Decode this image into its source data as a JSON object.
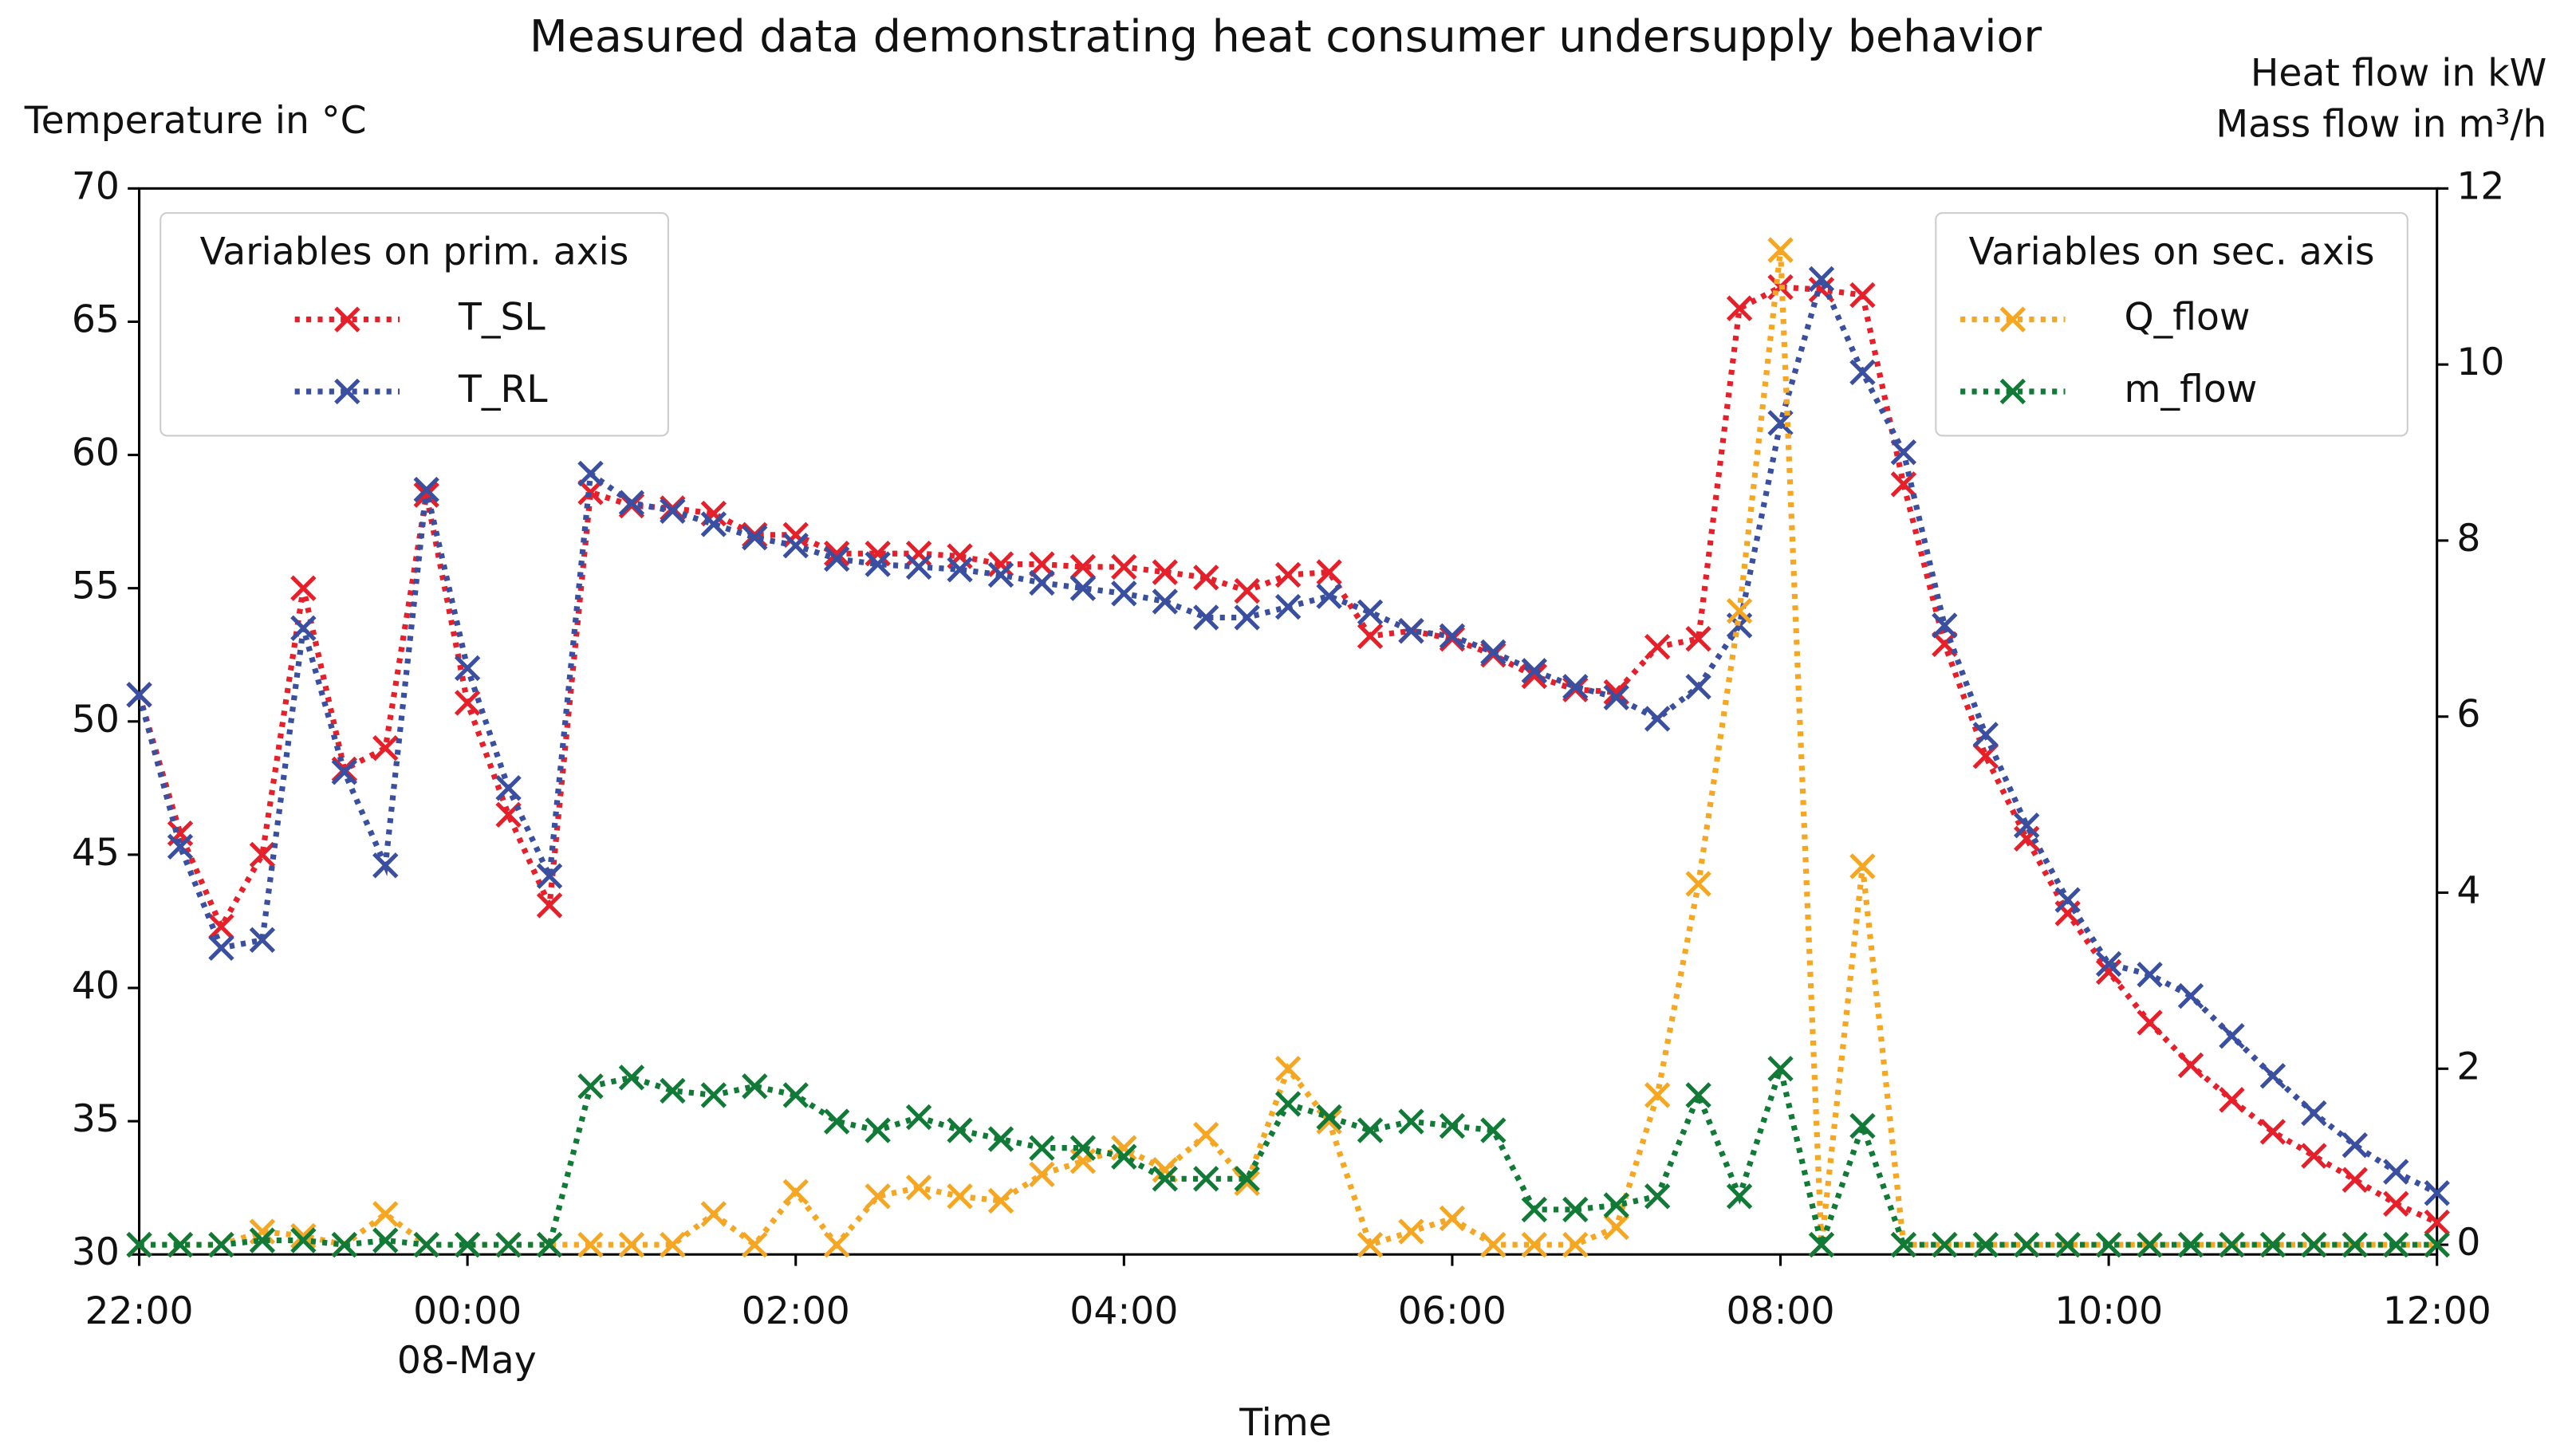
{
  "chart_data": {
    "type": "line",
    "title": "Measured data demonstrating heat consumer undersupply behavior",
    "y_label": "Temperature in °C",
    "y2_label": [
      "Heat flow in kW",
      "Mass flow in m³/h"
    ],
    "x_label": "Time",
    "x_date_label": "08-May",
    "legend_titles": [
      "Variables on prim. axis",
      "Variables on sec. axis"
    ],
    "x": [
      -2,
      -1.75,
      -1.5,
      -1.25,
      -1,
      -0.75,
      -0.5,
      -0.25,
      0,
      0.25,
      0.5,
      0.75,
      1,
      1.25,
      1.5,
      1.75,
      2,
      2.25,
      2.5,
      2.75,
      3,
      3.25,
      3.5,
      3.75,
      4,
      4.25,
      4.5,
      4.75,
      5,
      5.25,
      5.5,
      5.75,
      6,
      6.25,
      6.5,
      6.75,
      7,
      7.25,
      7.5,
      7.75,
      8,
      8.25,
      8.5,
      8.75,
      9,
      9.25,
      9.5,
      9.75,
      10,
      10.25,
      10.5,
      10.75,
      11,
      11.25,
      11.5,
      11.75,
      12
    ],
    "xlim": [
      -2,
      12
    ],
    "xticks": [
      {
        "value": -2,
        "label": "22:00"
      },
      {
        "value": 0,
        "label": "00:00"
      },
      {
        "value": 2,
        "label": "02:00"
      },
      {
        "value": 4,
        "label": "04:00"
      },
      {
        "value": 6,
        "label": "06:00"
      },
      {
        "value": 8,
        "label": "08:00"
      },
      {
        "value": 10,
        "label": "10:00"
      },
      {
        "value": 12,
        "label": "12:00"
      }
    ],
    "ylim": [
      30,
      70
    ],
    "yticks": [
      30,
      35,
      40,
      45,
      50,
      55,
      60,
      65,
      70
    ],
    "y2lim": [
      -0.11,
      12
    ],
    "y2ticks": [
      0,
      2,
      4,
      6,
      8,
      10,
      12
    ],
    "series": [
      {
        "name": "T_SL",
        "color": "#e5202a",
        "values": [
          51,
          45.8,
          42.3,
          45,
          55,
          48.2,
          49,
          58.5,
          50.7,
          46.5,
          43.1,
          58.6,
          58.1,
          58,
          57.8,
          57,
          57,
          56.3,
          56.3,
          56.3,
          56.2,
          55.9,
          55.9,
          55.8,
          55.8,
          55.6,
          55.4,
          54.9,
          55.5,
          55.6,
          53.2,
          53.4,
          53.1,
          52.5,
          51.7,
          51.2,
          51.1,
          52.8,
          53.1,
          65.5,
          66.3,
          66.2,
          66,
          58.9,
          52.9,
          48.7,
          45.6,
          42.8,
          40.6,
          38.7,
          37.1,
          35.8,
          34.6,
          33.7,
          32.8,
          31.9,
          31.2
        ]
      },
      {
        "name": "T_RL",
        "color": "#3a4fa0",
        "values": [
          51,
          45.3,
          41.5,
          41.8,
          53.5,
          48.1,
          44.6,
          58.7,
          52,
          47.5,
          44.2,
          59.3,
          58.2,
          57.9,
          57.4,
          56.9,
          56.6,
          56.1,
          55.9,
          55.8,
          55.7,
          55.5,
          55.2,
          55,
          54.8,
          54.5,
          53.9,
          53.9,
          54.3,
          54.7,
          54.1,
          53.4,
          53.2,
          52.6,
          51.9,
          51.3,
          50.9,
          50.1,
          51.3,
          53.6,
          61.2,
          66.6,
          63.1,
          60.1,
          53.6,
          49.5,
          46.1,
          43.3,
          40.9,
          40.5,
          39.7,
          38.2,
          36.7,
          35.3,
          34.1,
          33.1,
          32.3
        ]
      },
      {
        "name": "Q_flow",
        "color": "#f5a623",
        "axis": "y2",
        "values": [
          0,
          0,
          0,
          0.15,
          0.1,
          0,
          0.35,
          0,
          0,
          0,
          0,
          0,
          0,
          0,
          0.35,
          0,
          0.6,
          0,
          0.55,
          0.65,
          0.55,
          0.5,
          0.8,
          0.95,
          1.1,
          0.85,
          1.25,
          0.7,
          2,
          1.4,
          0,
          0.15,
          0.3,
          0,
          0,
          0,
          0.2,
          1.7,
          4.1,
          7.2,
          11.3,
          0,
          4.3,
          0,
          0,
          0,
          0,
          0,
          0,
          0,
          0,
          0,
          0,
          0,
          0,
          0,
          0
        ]
      },
      {
        "name": "m_flow",
        "color": "#117a37",
        "axis": "y2",
        "values": [
          0,
          0,
          0,
          0.05,
          0.05,
          0,
          0.05,
          0,
          0,
          0,
          0,
          1.8,
          1.9,
          1.75,
          1.7,
          1.8,
          1.7,
          1.4,
          1.3,
          1.45,
          1.3,
          1.2,
          1.1,
          1.1,
          1,
          0.75,
          0.75,
          0.75,
          1.6,
          1.45,
          1.3,
          1.4,
          1.35,
          1.3,
          0.4,
          0.4,
          0.45,
          0.55,
          1.7,
          0.55,
          2,
          0,
          1.35,
          0,
          0,
          0,
          0,
          0,
          0,
          0,
          0,
          0,
          0,
          0,
          0,
          0,
          0
        ]
      }
    ]
  }
}
